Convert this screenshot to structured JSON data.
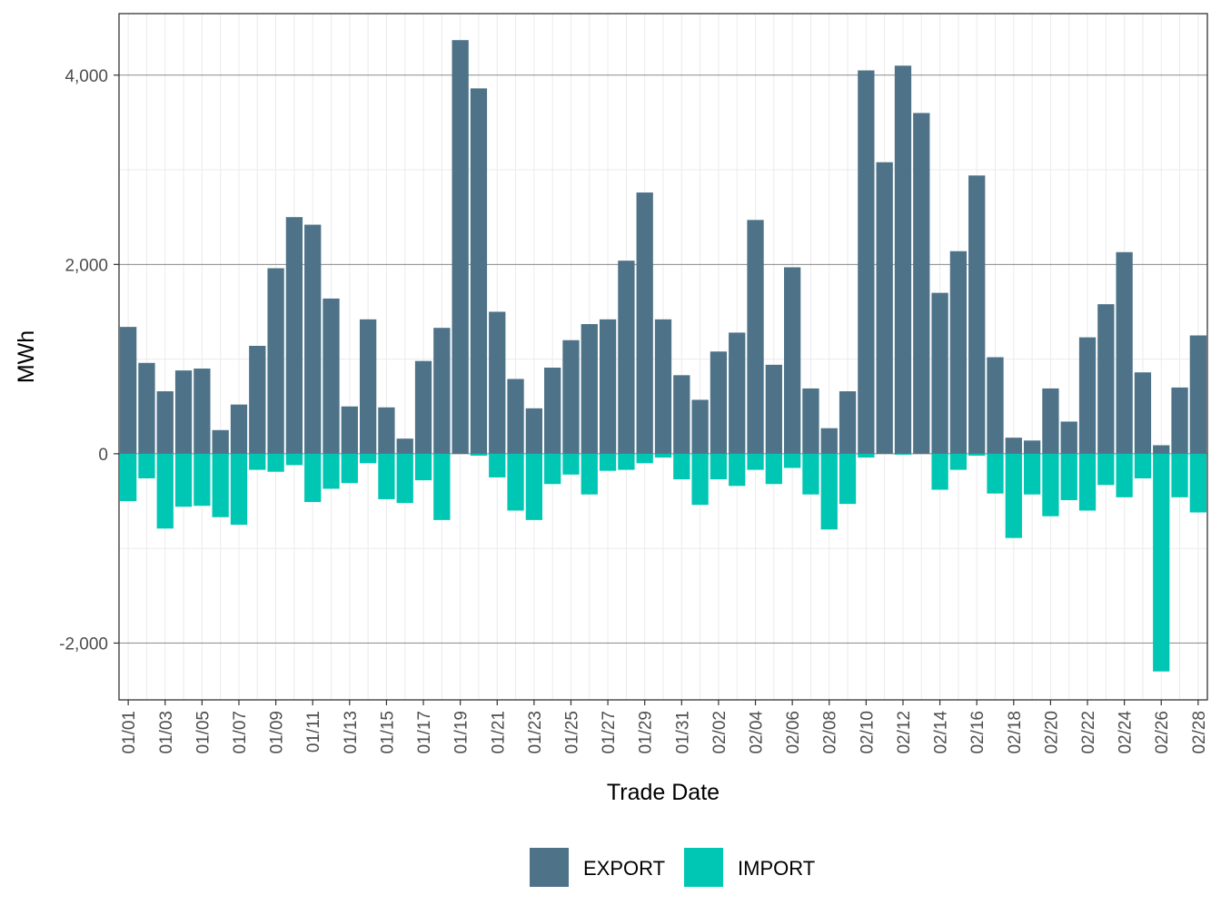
{
  "chart_data": {
    "type": "bar",
    "stacking": "diverging",
    "xlabel": "Trade Date",
    "ylabel": "MWh",
    "ylim": [
      -2600,
      4650
    ],
    "y_major_ticks": [
      -2000,
      0,
      2000,
      4000
    ],
    "y_tick_labels": [
      "-2,000",
      "0",
      "2,000",
      "4,000"
    ],
    "y_minor_ticks": [
      -1000,
      1000,
      3000
    ],
    "categories": [
      "01/01",
      "01/02",
      "01/03",
      "01/04",
      "01/05",
      "01/06",
      "01/07",
      "01/08",
      "01/09",
      "01/10",
      "01/11",
      "01/12",
      "01/13",
      "01/14",
      "01/15",
      "01/16",
      "01/17",
      "01/18",
      "01/19",
      "01/20",
      "01/21",
      "01/22",
      "01/23",
      "01/24",
      "01/25",
      "01/26",
      "01/27",
      "01/28",
      "01/29",
      "01/30",
      "01/31",
      "02/01",
      "02/02",
      "02/03",
      "02/04",
      "02/05",
      "02/06",
      "02/07",
      "02/08",
      "02/09",
      "02/10",
      "02/11",
      "02/12",
      "02/13",
      "02/14",
      "02/15",
      "02/16",
      "02/17",
      "02/18",
      "02/19",
      "02/20",
      "02/21",
      "02/22",
      "02/23",
      "02/24",
      "02/25",
      "02/26",
      "02/27",
      "02/28"
    ],
    "x_tick_labels": [
      "01/01",
      "01/03",
      "01/05",
      "01/07",
      "01/09",
      "01/11",
      "01/13",
      "01/15",
      "01/17",
      "01/19",
      "01/21",
      "01/23",
      "01/25",
      "01/27",
      "01/29",
      "01/31",
      "02/02",
      "02/04",
      "02/06",
      "02/08",
      "02/10",
      "02/12",
      "02/14",
      "02/16",
      "02/18",
      "02/20",
      "02/22",
      "02/24",
      "02/26",
      "02/28"
    ],
    "series": [
      {
        "name": "EXPORT",
        "color": "#4e7287",
        "values": [
          1340,
          960,
          660,
          880,
          900,
          250,
          520,
          1140,
          1960,
          2500,
          2420,
          1640,
          500,
          1420,
          490,
          160,
          980,
          1330,
          4370,
          3860,
          1500,
          790,
          480,
          910,
          1200,
          1370,
          1420,
          2040,
          2760,
          1420,
          830,
          570,
          1080,
          1280,
          2470,
          940,
          1970,
          690,
          270,
          660,
          4050,
          3080,
          4100,
          3600,
          1700,
          2140,
          2940,
          1020,
          170,
          140,
          690,
          340,
          1230,
          1580,
          2130,
          860,
          90,
          700,
          1250
        ]
      },
      {
        "name": "IMPORT",
        "color": "#00c7b4",
        "values": [
          -500,
          -260,
          -790,
          -560,
          -550,
          -670,
          -750,
          -170,
          -190,
          -120,
          -510,
          -370,
          -310,
          -100,
          -480,
          -520,
          -280,
          -700,
          0,
          -20,
          -250,
          -600,
          -700,
          -320,
          -220,
          -430,
          -180,
          -170,
          -100,
          -40,
          -270,
          -540,
          -270,
          -340,
          -170,
          -320,
          -150,
          -430,
          -800,
          -530,
          -40,
          0,
          -10,
          0,
          -380,
          -170,
          -20,
          -420,
          -890,
          -430,
          -660,
          -490,
          -600,
          -330,
          -460,
          -260,
          -2300,
          -460,
          -620
        ]
      }
    ],
    "legend": {
      "position": "bottom",
      "entries": [
        "EXPORT",
        "IMPORT"
      ]
    }
  }
}
